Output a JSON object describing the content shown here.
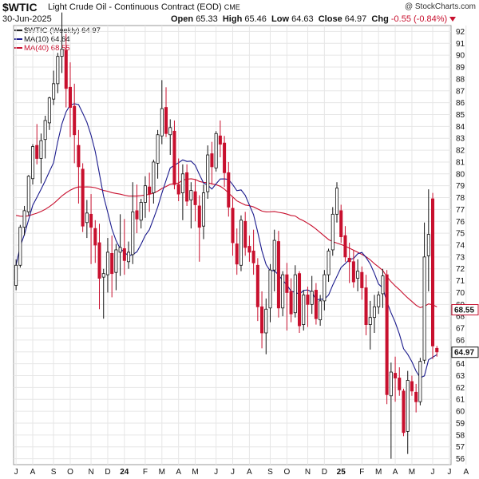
{
  "header": {
    "symbol": "$WTIC",
    "description": "Light Crude Oil - Continuous Contract (EOD)",
    "exchange": "CME",
    "date": "30-Jun-2025",
    "open_label": "Open",
    "open": "65.33",
    "high_label": "High",
    "high": "65.46",
    "low_label": "Low",
    "low": "64.63",
    "close_label": "Close",
    "close": "64.97",
    "chg_label": "Chg",
    "chg": "-0.55 (-0.84%)",
    "brand": "@ StockCharts.com"
  },
  "legend": {
    "price": "$WTIC (Weekly) 64.97",
    "ma10": "MA(10) 64.64",
    "ma40": "MA(40) 68.55"
  },
  "colors": {
    "up": "#111111",
    "down": "#c8102e",
    "ma10": "#1a1a8c",
    "ma40": "#c8102e",
    "grid": "#e6e6e6"
  },
  "chart_data": {
    "type": "candlestick",
    "title": "$WTIC Light Crude Oil - Continuous Contract (EOD)",
    "ylim": [
      55.5,
      92.5
    ],
    "y_ticks": [
      56,
      57,
      58,
      59,
      60,
      61,
      62,
      63,
      64,
      65,
      66,
      67,
      68,
      69,
      70,
      71,
      72,
      73,
      74,
      75,
      76,
      77,
      78,
      79,
      80,
      81,
      82,
      83,
      84,
      85,
      86,
      87,
      88,
      89,
      90,
      91,
      92
    ],
    "x_ticks": [
      {
        "label": "J",
        "index": 0
      },
      {
        "label": "A",
        "index": 4
      },
      {
        "label": "S",
        "index": 9
      },
      {
        "label": "O",
        "index": 13
      },
      {
        "label": "N",
        "index": 18
      },
      {
        "label": "D",
        "index": 22
      },
      {
        "label": "24",
        "index": 26
      },
      {
        "label": "F",
        "index": 31
      },
      {
        "label": "M",
        "index": 35
      },
      {
        "label": "A",
        "index": 39
      },
      {
        "label": "M",
        "index": 43
      },
      {
        "label": "J",
        "index": 48
      },
      {
        "label": "J",
        "index": 52
      },
      {
        "label": "A",
        "index": 56
      },
      {
        "label": "S",
        "index": 61
      },
      {
        "label": "O",
        "index": 65
      },
      {
        "label": "N",
        "index": 70
      },
      {
        "label": "D",
        "index": 74
      },
      {
        "label": "25",
        "index": 78
      },
      {
        "label": "F",
        "index": 83
      },
      {
        "label": "M",
        "index": 87
      },
      {
        "label": "A",
        "index": 91
      },
      {
        "label": "M",
        "index": 95
      },
      {
        "label": "J",
        "index": 100
      },
      {
        "label": "J",
        "index": 104
      },
      {
        "label": "A",
        "index": 108
      }
    ],
    "last_labels": {
      "ma40": "68.55",
      "close": "64.97"
    },
    "candles": [
      {
        "o": 70.6,
        "h": 72.8,
        "l": 70.2,
        "c": 72.3
      },
      {
        "o": 72.3,
        "h": 75.7,
        "l": 72.1,
        "c": 75.5
      },
      {
        "o": 75.5,
        "h": 77.3,
        "l": 74.8,
        "c": 76.9
      },
      {
        "o": 76.8,
        "h": 79.9,
        "l": 76.5,
        "c": 79.8
      },
      {
        "o": 79.6,
        "h": 82.5,
        "l": 79.1,
        "c": 82.3
      },
      {
        "o": 82.4,
        "h": 84.2,
        "l": 80.8,
        "c": 81.3
      },
      {
        "o": 81.3,
        "h": 83.4,
        "l": 79.2,
        "c": 82.8
      },
      {
        "o": 82.9,
        "h": 84.9,
        "l": 81.3,
        "c": 84.5
      },
      {
        "o": 84.3,
        "h": 86.5,
        "l": 83.7,
        "c": 86.4
      },
      {
        "o": 86.3,
        "h": 88.7,
        "l": 85.8,
        "c": 87.6
      },
      {
        "o": 87.6,
        "h": 90.2,
        "l": 86.8,
        "c": 89.9
      },
      {
        "o": 89.9,
        "h": 93.6,
        "l": 88.5,
        "c": 90.5
      },
      {
        "o": 90.4,
        "h": 91.8,
        "l": 85.6,
        "c": 87.2
      },
      {
        "o": 87.3,
        "h": 89.4,
        "l": 83.1,
        "c": 85.6
      },
      {
        "o": 85.7,
        "h": 87.6,
        "l": 80.9,
        "c": 83.3
      },
      {
        "o": 82.4,
        "h": 83.7,
        "l": 77.5,
        "c": 80.6
      },
      {
        "o": 80.4,
        "h": 80.9,
        "l": 75.1,
        "c": 75.6
      },
      {
        "o": 75.9,
        "h": 77.8,
        "l": 74.6,
        "c": 76.7
      },
      {
        "o": 76.6,
        "h": 78.3,
        "l": 72.4,
        "c": 75.5
      },
      {
        "o": 75.4,
        "h": 76.1,
        "l": 72.5,
        "c": 74.0
      },
      {
        "o": 74.2,
        "h": 75.8,
        "l": 68.6,
        "c": 71.2
      },
      {
        "o": 71.3,
        "h": 72.0,
        "l": 67.8,
        "c": 71.6
      },
      {
        "o": 71.5,
        "h": 74.6,
        "l": 70.0,
        "c": 73.4
      },
      {
        "o": 73.3,
        "h": 74.8,
        "l": 69.6,
        "c": 71.6
      },
      {
        "o": 71.7,
        "h": 74.1,
        "l": 70.2,
        "c": 73.6
      },
      {
        "o": 73.4,
        "h": 76.6,
        "l": 71.4,
        "c": 73.8
      },
      {
        "o": 73.7,
        "h": 76.2,
        "l": 71.5,
        "c": 72.7
      },
      {
        "o": 72.6,
        "h": 74.3,
        "l": 72.0,
        "c": 73.4
      },
      {
        "o": 73.2,
        "h": 79.3,
        "l": 72.4,
        "c": 76.8
      },
      {
        "o": 76.9,
        "h": 79.1,
        "l": 75.0,
        "c": 76.2
      },
      {
        "o": 76.1,
        "h": 77.9,
        "l": 75.4,
        "c": 77.6
      },
      {
        "o": 77.6,
        "h": 79.8,
        "l": 76.3,
        "c": 79.0
      },
      {
        "o": 78.9,
        "h": 80.1,
        "l": 76.8,
        "c": 78.3
      },
      {
        "o": 78.4,
        "h": 81.2,
        "l": 77.5,
        "c": 81.0
      },
      {
        "o": 80.9,
        "h": 83.7,
        "l": 79.6,
        "c": 83.3
      },
      {
        "o": 83.2,
        "h": 87.9,
        "l": 82.5,
        "c": 85.5
      },
      {
        "o": 85.6,
        "h": 87.3,
        "l": 83.1,
        "c": 83.4
      },
      {
        "o": 83.3,
        "h": 84.6,
        "l": 81.6,
        "c": 83.9
      },
      {
        "o": 83.6,
        "h": 84.5,
        "l": 78.7,
        "c": 79.1
      },
      {
        "o": 79.1,
        "h": 81.3,
        "l": 77.7,
        "c": 78.3
      },
      {
        "o": 78.4,
        "h": 80.8,
        "l": 76.1,
        "c": 80.0
      },
      {
        "o": 80.1,
        "h": 80.8,
        "l": 77.3,
        "c": 77.7
      },
      {
        "o": 77.8,
        "h": 79.3,
        "l": 75.4,
        "c": 78.6
      },
      {
        "o": 78.5,
        "h": 79.5,
        "l": 76.0,
        "c": 77.4
      },
      {
        "o": 77.3,
        "h": 78.2,
        "l": 72.6,
        "c": 75.5
      },
      {
        "o": 75.6,
        "h": 79.1,
        "l": 74.5,
        "c": 78.4
      },
      {
        "o": 78.5,
        "h": 82.4,
        "l": 77.9,
        "c": 81.6
      },
      {
        "o": 81.7,
        "h": 82.7,
        "l": 79.1,
        "c": 80.6
      },
      {
        "o": 80.5,
        "h": 83.6,
        "l": 80.2,
        "c": 83.4
      },
      {
        "o": 83.2,
        "h": 84.5,
        "l": 81.4,
        "c": 82.5
      },
      {
        "o": 82.6,
        "h": 83.2,
        "l": 78.9,
        "c": 80.1
      },
      {
        "o": 80.1,
        "h": 81.0,
        "l": 76.4,
        "c": 77.2
      },
      {
        "o": 77.1,
        "h": 78.0,
        "l": 73.1,
        "c": 74.2
      },
      {
        "o": 74.1,
        "h": 75.4,
        "l": 71.5,
        "c": 72.4
      },
      {
        "o": 72.3,
        "h": 76.5,
        "l": 71.8,
        "c": 76.1
      },
      {
        "o": 76.0,
        "h": 76.8,
        "l": 73.1,
        "c": 73.8
      },
      {
        "o": 73.9,
        "h": 74.8,
        "l": 72.6,
        "c": 73.4
      },
      {
        "o": 73.5,
        "h": 75.3,
        "l": 71.5,
        "c": 72.5
      },
      {
        "o": 72.3,
        "h": 72.9,
        "l": 67.6,
        "c": 68.8
      },
      {
        "o": 68.8,
        "h": 70.1,
        "l": 65.3,
        "c": 66.6
      },
      {
        "o": 66.6,
        "h": 69.5,
        "l": 64.8,
        "c": 68.6
      },
      {
        "o": 68.7,
        "h": 72.4,
        "l": 67.5,
        "c": 71.9
      },
      {
        "o": 71.9,
        "h": 75.3,
        "l": 70.1,
        "c": 74.4
      },
      {
        "o": 74.3,
        "h": 75.2,
        "l": 67.9,
        "c": 68.7
      },
      {
        "o": 68.7,
        "h": 71.8,
        "l": 68.0,
        "c": 71.5
      },
      {
        "o": 71.5,
        "h": 72.5,
        "l": 66.8,
        "c": 70.0
      },
      {
        "o": 70.1,
        "h": 71.2,
        "l": 67.5,
        "c": 68.2
      },
      {
        "o": 68.3,
        "h": 72.3,
        "l": 67.9,
        "c": 71.5
      },
      {
        "o": 71.6,
        "h": 71.8,
        "l": 66.6,
        "c": 67.2
      },
      {
        "o": 67.3,
        "h": 70.2,
        "l": 66.8,
        "c": 69.8
      },
      {
        "o": 69.8,
        "h": 70.5,
        "l": 67.1,
        "c": 69.0
      },
      {
        "o": 69.0,
        "h": 71.4,
        "l": 68.2,
        "c": 70.1
      },
      {
        "o": 70.2,
        "h": 70.8,
        "l": 67.3,
        "c": 67.8
      },
      {
        "o": 67.7,
        "h": 69.8,
        "l": 67.2,
        "c": 69.3
      },
      {
        "o": 69.3,
        "h": 71.9,
        "l": 68.5,
        "c": 71.5
      },
      {
        "o": 71.5,
        "h": 73.7,
        "l": 70.9,
        "c": 73.5
      },
      {
        "o": 73.6,
        "h": 77.2,
        "l": 73.1,
        "c": 76.6
      },
      {
        "o": 76.6,
        "h": 79.3,
        "l": 75.9,
        "c": 78.8
      },
      {
        "o": 76.9,
        "h": 77.4,
        "l": 74.2,
        "c": 74.7
      },
      {
        "o": 74.8,
        "h": 75.6,
        "l": 72.6,
        "c": 73.0
      },
      {
        "o": 72.9,
        "h": 74.2,
        "l": 70.8,
        "c": 72.6
      },
      {
        "o": 72.6,
        "h": 73.6,
        "l": 70.4,
        "c": 70.9
      },
      {
        "o": 71.2,
        "h": 72.8,
        "l": 70.1,
        "c": 71.8
      },
      {
        "o": 71.7,
        "h": 72.2,
        "l": 69.4,
        "c": 70.4
      },
      {
        "o": 70.4,
        "h": 71.5,
        "l": 66.4,
        "c": 67.3
      },
      {
        "o": 67.3,
        "h": 69.3,
        "l": 65.2,
        "c": 67.9
      },
      {
        "o": 67.9,
        "h": 69.8,
        "l": 66.6,
        "c": 68.8
      },
      {
        "o": 68.8,
        "h": 70.1,
        "l": 68.2,
        "c": 69.8
      },
      {
        "o": 69.9,
        "h": 72.0,
        "l": 68.7,
        "c": 71.4
      },
      {
        "o": 71.5,
        "h": 71.9,
        "l": 60.6,
        "c": 61.4
      },
      {
        "o": 61.3,
        "h": 64.1,
        "l": 56.0,
        "c": 63.3
      },
      {
        "o": 63.2,
        "h": 64.6,
        "l": 60.8,
        "c": 62.8
      },
      {
        "o": 62.8,
        "h": 63.7,
        "l": 61.3,
        "c": 61.8
      },
      {
        "o": 61.7,
        "h": 61.9,
        "l": 57.9,
        "c": 58.2
      },
      {
        "o": 58.3,
        "h": 63.4,
        "l": 56.4,
        "c": 62.6
      },
      {
        "o": 62.5,
        "h": 63.0,
        "l": 61.3,
        "c": 61.7
      },
      {
        "o": 61.6,
        "h": 62.3,
        "l": 59.9,
        "c": 60.8
      },
      {
        "o": 60.8,
        "h": 64.5,
        "l": 60.5,
        "c": 64.2
      },
      {
        "o": 64.3,
        "h": 75.9,
        "l": 64.0,
        "c": 73.0
      },
      {
        "o": 73.1,
        "h": 78.7,
        "l": 70.1,
        "c": 74.9
      },
      {
        "o": 77.9,
        "h": 78.4,
        "l": 64.4,
        "c": 65.5
      },
      {
        "o": 65.3,
        "h": 65.5,
        "l": 64.6,
        "c": 65.0
      }
    ]
  }
}
